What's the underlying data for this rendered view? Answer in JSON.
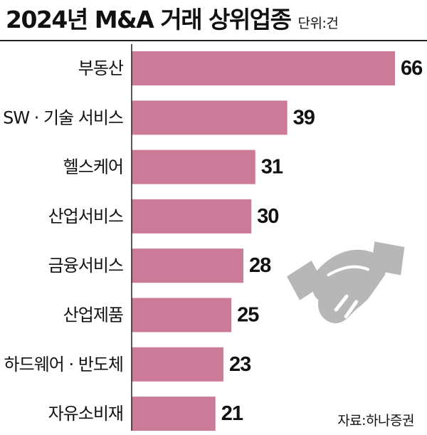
{
  "header": {
    "title": "2024년 M&A 거래 상위업종",
    "unit": "단위:건"
  },
  "source": "자료:하나증권",
  "colors": {
    "bar": "#cb7b98",
    "text": "#111111",
    "rule": "#222222",
    "axis": "#222222",
    "handshake_icon": "#b7b7b7"
  },
  "icons": {
    "decoration": "handshake-icon"
  },
  "chart_data": {
    "type": "bar",
    "orientation": "horizontal",
    "title": "2024년 M&A 거래 상위업종",
    "unit": "단위:건",
    "categories": [
      "부동산",
      "SW · 기술 서비스",
      "헬스케어",
      "산업서비스",
      "금융서비스",
      "산업제품",
      "하드웨어 · 반도체",
      "자유소비재"
    ],
    "values": [
      66,
      39,
      31,
      30,
      28,
      25,
      23,
      21
    ],
    "xlabel": "",
    "ylabel": "",
    "xlim": [
      0,
      66
    ],
    "grid": false,
    "legend": "none",
    "data_labels": true
  }
}
